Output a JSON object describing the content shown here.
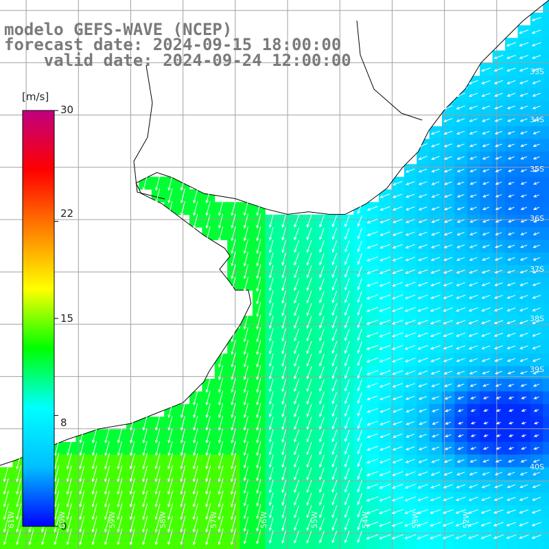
{
  "title": {
    "line1": "modelo GEFS-WAVE (NCEP)",
    "line2": "forecast date: 2024-09-15 18:00:00",
    "line3": "valid date: 2024-09-24 12:00:00"
  },
  "colorbar": {
    "unit": "[m/s]",
    "ticks": [
      "30",
      "22",
      "15",
      "8",
      "0"
    ],
    "tick_values": [
      30,
      22,
      15,
      8,
      0
    ],
    "min": 0,
    "max": 30,
    "colors": [
      "#0000ff",
      "#00bfff",
      "#00ffff",
      "#00ff00",
      "#ffff00",
      "#ff8000",
      "#ff0000",
      "#c00080"
    ]
  },
  "map": {
    "land_color": "#ffffff",
    "coastline_color": "#000000",
    "grid_color": "#a0a0a0",
    "lat_labels": [
      "33S",
      "34S",
      "35S",
      "36S",
      "37S",
      "38S",
      "39S",
      "40S"
    ],
    "lon_labels": [
      "61W",
      "60W",
      "59W",
      "58W",
      "57W",
      "56W",
      "55W",
      "54W",
      "53W",
      "52W"
    ],
    "lon_min": -61.5,
    "lon_max": -51.0,
    "lat_min": -41.3,
    "lat_max": -30.8,
    "arrow_color": "#ffffff"
  }
}
